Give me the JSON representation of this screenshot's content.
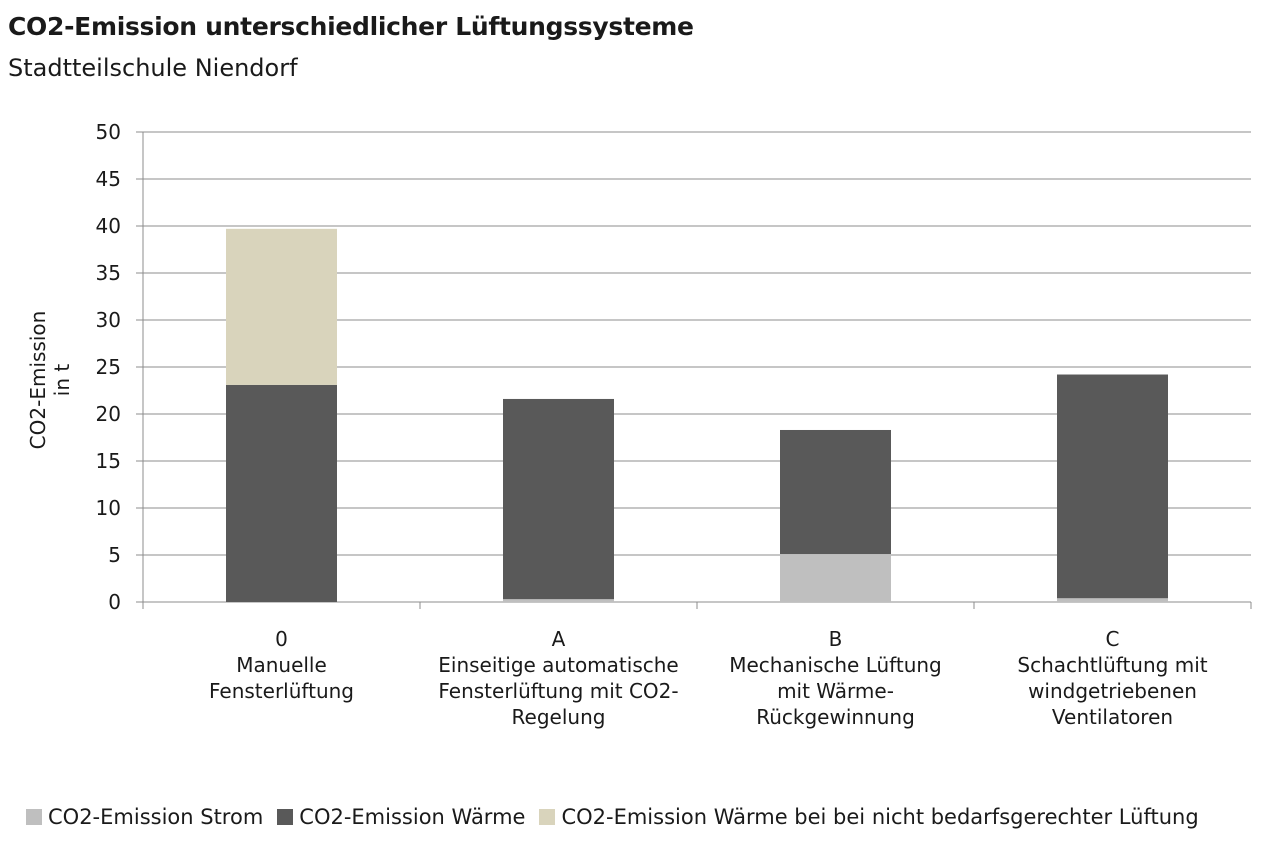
{
  "chart_data": {
    "type": "bar",
    "stacked": true,
    "title": "CO2-Emission unterschiedlicher Lüftungssysteme",
    "subtitle": "Stadtteilschule Niendorf",
    "ylabel": [
      "CO2-Emission",
      "in t"
    ],
    "xlabel": "",
    "ylim": [
      0,
      50
    ],
    "yticks": [
      0,
      5,
      10,
      15,
      20,
      25,
      30,
      35,
      40,
      45,
      50
    ],
    "grid": true,
    "legend_position": "bottom",
    "categories": [
      [
        "0",
        "Manuelle",
        "Fensterlüftung"
      ],
      [
        "A",
        "Einseitige automatische",
        "Fensterlüftung mit CO2-",
        "Regelung"
      ],
      [
        "B",
        "Mechanische Lüftung",
        "mit Wärme-",
        "Rückgewinnung"
      ],
      [
        "C",
        "Schachtlüftung mit",
        "windgetriebenen",
        "Ventilatoren"
      ]
    ],
    "series": [
      {
        "name": "CO2-Emission Strom",
        "color": "#bfbfbf",
        "values": [
          0,
          0.3,
          5.1,
          0.4
        ]
      },
      {
        "name": "CO2-Emission Wärme",
        "color": "#595959",
        "values": [
          23.1,
          21.3,
          13.2,
          23.8
        ]
      },
      {
        "name": "CO2-Emission Wärme bei bei nicht bedarfsgerechter Lüftung",
        "color": "#d9d4bc",
        "values": [
          16.6,
          0,
          0,
          0
        ]
      }
    ]
  }
}
